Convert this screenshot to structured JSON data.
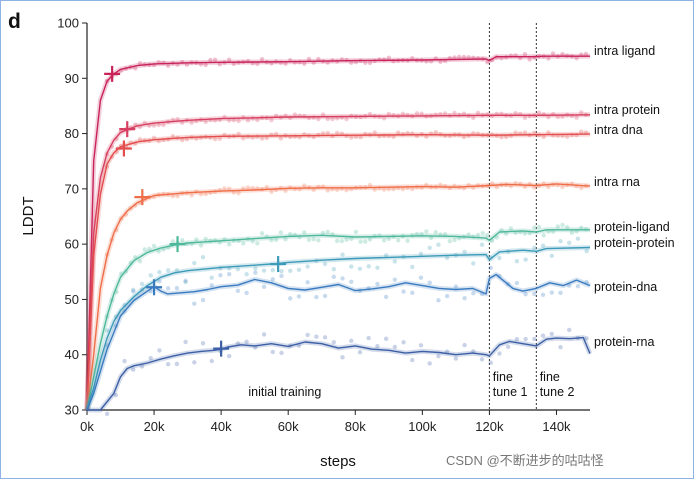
{
  "panel_letter": "d",
  "watermark": "CSDN @不断进步的咕咕怪",
  "chart_data": {
    "type": "line",
    "title": "",
    "xlabel": "steps",
    "ylabel": "LDDT",
    "xlim": [
      0,
      150000
    ],
    "ylim": [
      30,
      100
    ],
    "x_ticks": [
      0,
      20000,
      40000,
      60000,
      80000,
      100000,
      120000,
      140000
    ],
    "x_tick_labels": [
      "0k",
      "20k",
      "40k",
      "60k",
      "80k",
      "100k",
      "120k",
      "140k"
    ],
    "y_ticks": [
      30,
      40,
      50,
      60,
      70,
      80,
      90,
      100
    ],
    "y_tick_labels": [
      "30",
      "40",
      "50",
      "60",
      "70",
      "80",
      "90",
      "100"
    ],
    "grid": false,
    "legend": "labels at right end of each line",
    "phase_boundaries": [
      120000,
      134000
    ],
    "phase_labels": [
      {
        "text": [
          "initial training"
        ],
        "x": 59000
      },
      {
        "text": [
          "fine",
          "tune 1"
        ],
        "x": 121000
      },
      {
        "text": [
          "fine",
          "tune 2"
        ],
        "x": 135000
      }
    ],
    "series": [
      {
        "name": "intra ligand",
        "color": "#c8245a",
        "x": [
          0,
          2000,
          4000,
          6000,
          8000,
          10000,
          15000,
          20000,
          30000,
          40000,
          60000,
          80000,
          100000,
          119000,
          120000,
          122000,
          134000,
          136000,
          150000
        ],
        "y": [
          30,
          75,
          86,
          89.5,
          90.8,
          91.6,
          92.3,
          92.6,
          92.8,
          92.9,
          93.0,
          93.2,
          93.3,
          93.5,
          93.2,
          93.9,
          93.9,
          94.0,
          94.0
        ],
        "marker": [
          7500,
          90.8
        ]
      },
      {
        "name": "intra protein",
        "color": "#d63f61",
        "x": [
          0,
          2000,
          4000,
          6000,
          8000,
          10000,
          15000,
          20000,
          30000,
          40000,
          60000,
          80000,
          100000,
          120000,
          134000,
          150000
        ],
        "y": [
          30,
          62,
          72,
          76.5,
          78.8,
          80.2,
          81.4,
          81.9,
          82.4,
          82.7,
          83.0,
          83.1,
          83.2,
          83.3,
          83.3,
          83.4
        ],
        "marker": [
          12000,
          80.8
        ]
      },
      {
        "name": "intra dna",
        "color": "#e34d4d",
        "x": [
          0,
          2000,
          4000,
          6000,
          8000,
          10000,
          15000,
          20000,
          30000,
          40000,
          60000,
          80000,
          100000,
          120000,
          134000,
          150000
        ],
        "y": [
          30,
          58,
          69,
          74.5,
          76.5,
          77.6,
          78.5,
          78.9,
          79.3,
          79.5,
          79.6,
          79.7,
          79.8,
          79.7,
          79.8,
          79.9
        ],
        "marker": [
          11000,
          77.3
        ]
      },
      {
        "name": "intra rna",
        "color": "#ef6e4a",
        "x": [
          0,
          2000,
          4000,
          6000,
          8000,
          10000,
          12000,
          15000,
          20000,
          30000,
          40000,
          50000,
          60000,
          70000,
          80000,
          90000,
          100000,
          110000,
          120000,
          125000,
          134000,
          140000,
          150000
        ],
        "y": [
          30,
          40,
          52,
          58,
          62,
          64.5,
          66,
          67.5,
          68.8,
          69.3,
          69.6,
          69.8,
          70.1,
          70.2,
          70.2,
          70.3,
          70.4,
          70.3,
          70.6,
          70.8,
          70.6,
          70.9,
          70.5
        ],
        "marker": [
          16500,
          68.5
        ]
      },
      {
        "name": "protein-ligand",
        "color": "#4fb89a",
        "x": [
          0,
          2000,
          4000,
          6000,
          8000,
          10000,
          14000,
          18000,
          22000,
          26000,
          30000,
          40000,
          50000,
          60000,
          70000,
          80000,
          90000,
          100000,
          110000,
          119000,
          120000,
          123000,
          130000,
          134000,
          137000,
          150000
        ],
        "y": [
          30,
          36,
          42,
          47,
          51,
          54,
          57,
          58.5,
          59.3,
          59.8,
          60.2,
          60.6,
          61.0,
          61.4,
          61.6,
          61.3,
          61.4,
          61.5,
          61.4,
          61.1,
          60.7,
          62.2,
          62.4,
          62.2,
          62.6,
          62.6
        ],
        "marker": [
          27000,
          60.0
        ]
      },
      {
        "name": "protein-protein",
        "color": "#3d9ab8",
        "x": [
          0,
          2000,
          4000,
          6000,
          8000,
          10000,
          14000,
          18000,
          22000,
          26000,
          30000,
          40000,
          50000,
          57000,
          60000,
          70000,
          80000,
          90000,
          100000,
          110000,
          119000,
          120000,
          123000,
          130000,
          134000,
          137000,
          150000
        ],
        "y": [
          30,
          34,
          39,
          43,
          46,
          48,
          50.5,
          52.5,
          54,
          54.8,
          55.2,
          55.8,
          56.2,
          56.5,
          56.7,
          57.1,
          57.4,
          57.6,
          57.8,
          58.0,
          58.1,
          57.2,
          58.6,
          58.9,
          58.7,
          59.2,
          59.4
        ],
        "marker": [
          57000,
          56.4
        ]
      },
      {
        "name": "protein-dna",
        "color": "#3a7bbf",
        "x": [
          0,
          2000,
          4000,
          6000,
          8000,
          10000,
          14000,
          18000,
          20000,
          22000,
          24000,
          28000,
          32000,
          36000,
          40000,
          45000,
          50000,
          55000,
          60000,
          65000,
          70000,
          75000,
          80000,
          85000,
          90000,
          95000,
          100000,
          105000,
          110000,
          115000,
          119000,
          120000,
          122000,
          124000,
          127000,
          130000,
          134000,
          138000,
          142000,
          146000,
          150000
        ],
        "y": [
          30,
          33,
          37,
          41,
          44,
          47,
          49.8,
          51.5,
          52.3,
          51.5,
          51.0,
          51.2,
          51.4,
          51.8,
          52.3,
          52.6,
          53.6,
          53.0,
          52.0,
          51.7,
          52.2,
          52.7,
          51.6,
          51.9,
          52.3,
          53.0,
          52.5,
          52.0,
          51.8,
          52.0,
          51.0,
          53.8,
          54.5,
          53.5,
          52.0,
          51.5,
          52.0,
          53.0,
          52.5,
          53.5,
          52.5
        ],
        "marker": [
          20000,
          52.2
        ]
      },
      {
        "name": "protein-rna",
        "color": "#3d5fa6",
        "x": [
          0,
          4000,
          8000,
          10000,
          12000,
          14000,
          18000,
          22000,
          26000,
          30000,
          34000,
          38000,
          40000,
          42000,
          46000,
          50000,
          55000,
          60000,
          65000,
          70000,
          75000,
          80000,
          85000,
          90000,
          95000,
          100000,
          105000,
          110000,
          115000,
          119000,
          120000,
          123000,
          126000,
          130000,
          134000,
          137000,
          140000,
          144000,
          148000,
          150000
        ],
        "y": [
          30,
          30,
          33,
          36,
          37.5,
          38,
          38.5,
          39.2,
          39.8,
          40.3,
          40.6,
          40.8,
          41.0,
          41.4,
          41.8,
          41.6,
          42.0,
          41.5,
          42.3,
          42.0,
          41.2,
          41.6,
          41.0,
          40.8,
          40.3,
          40.6,
          40.4,
          40.0,
          40.3,
          40.0,
          39.8,
          41.8,
          42.4,
          42.0,
          41.6,
          42.8,
          43.0,
          42.9,
          43.1,
          40.2
        ],
        "marker": [
          40000,
          41.1
        ]
      }
    ]
  }
}
